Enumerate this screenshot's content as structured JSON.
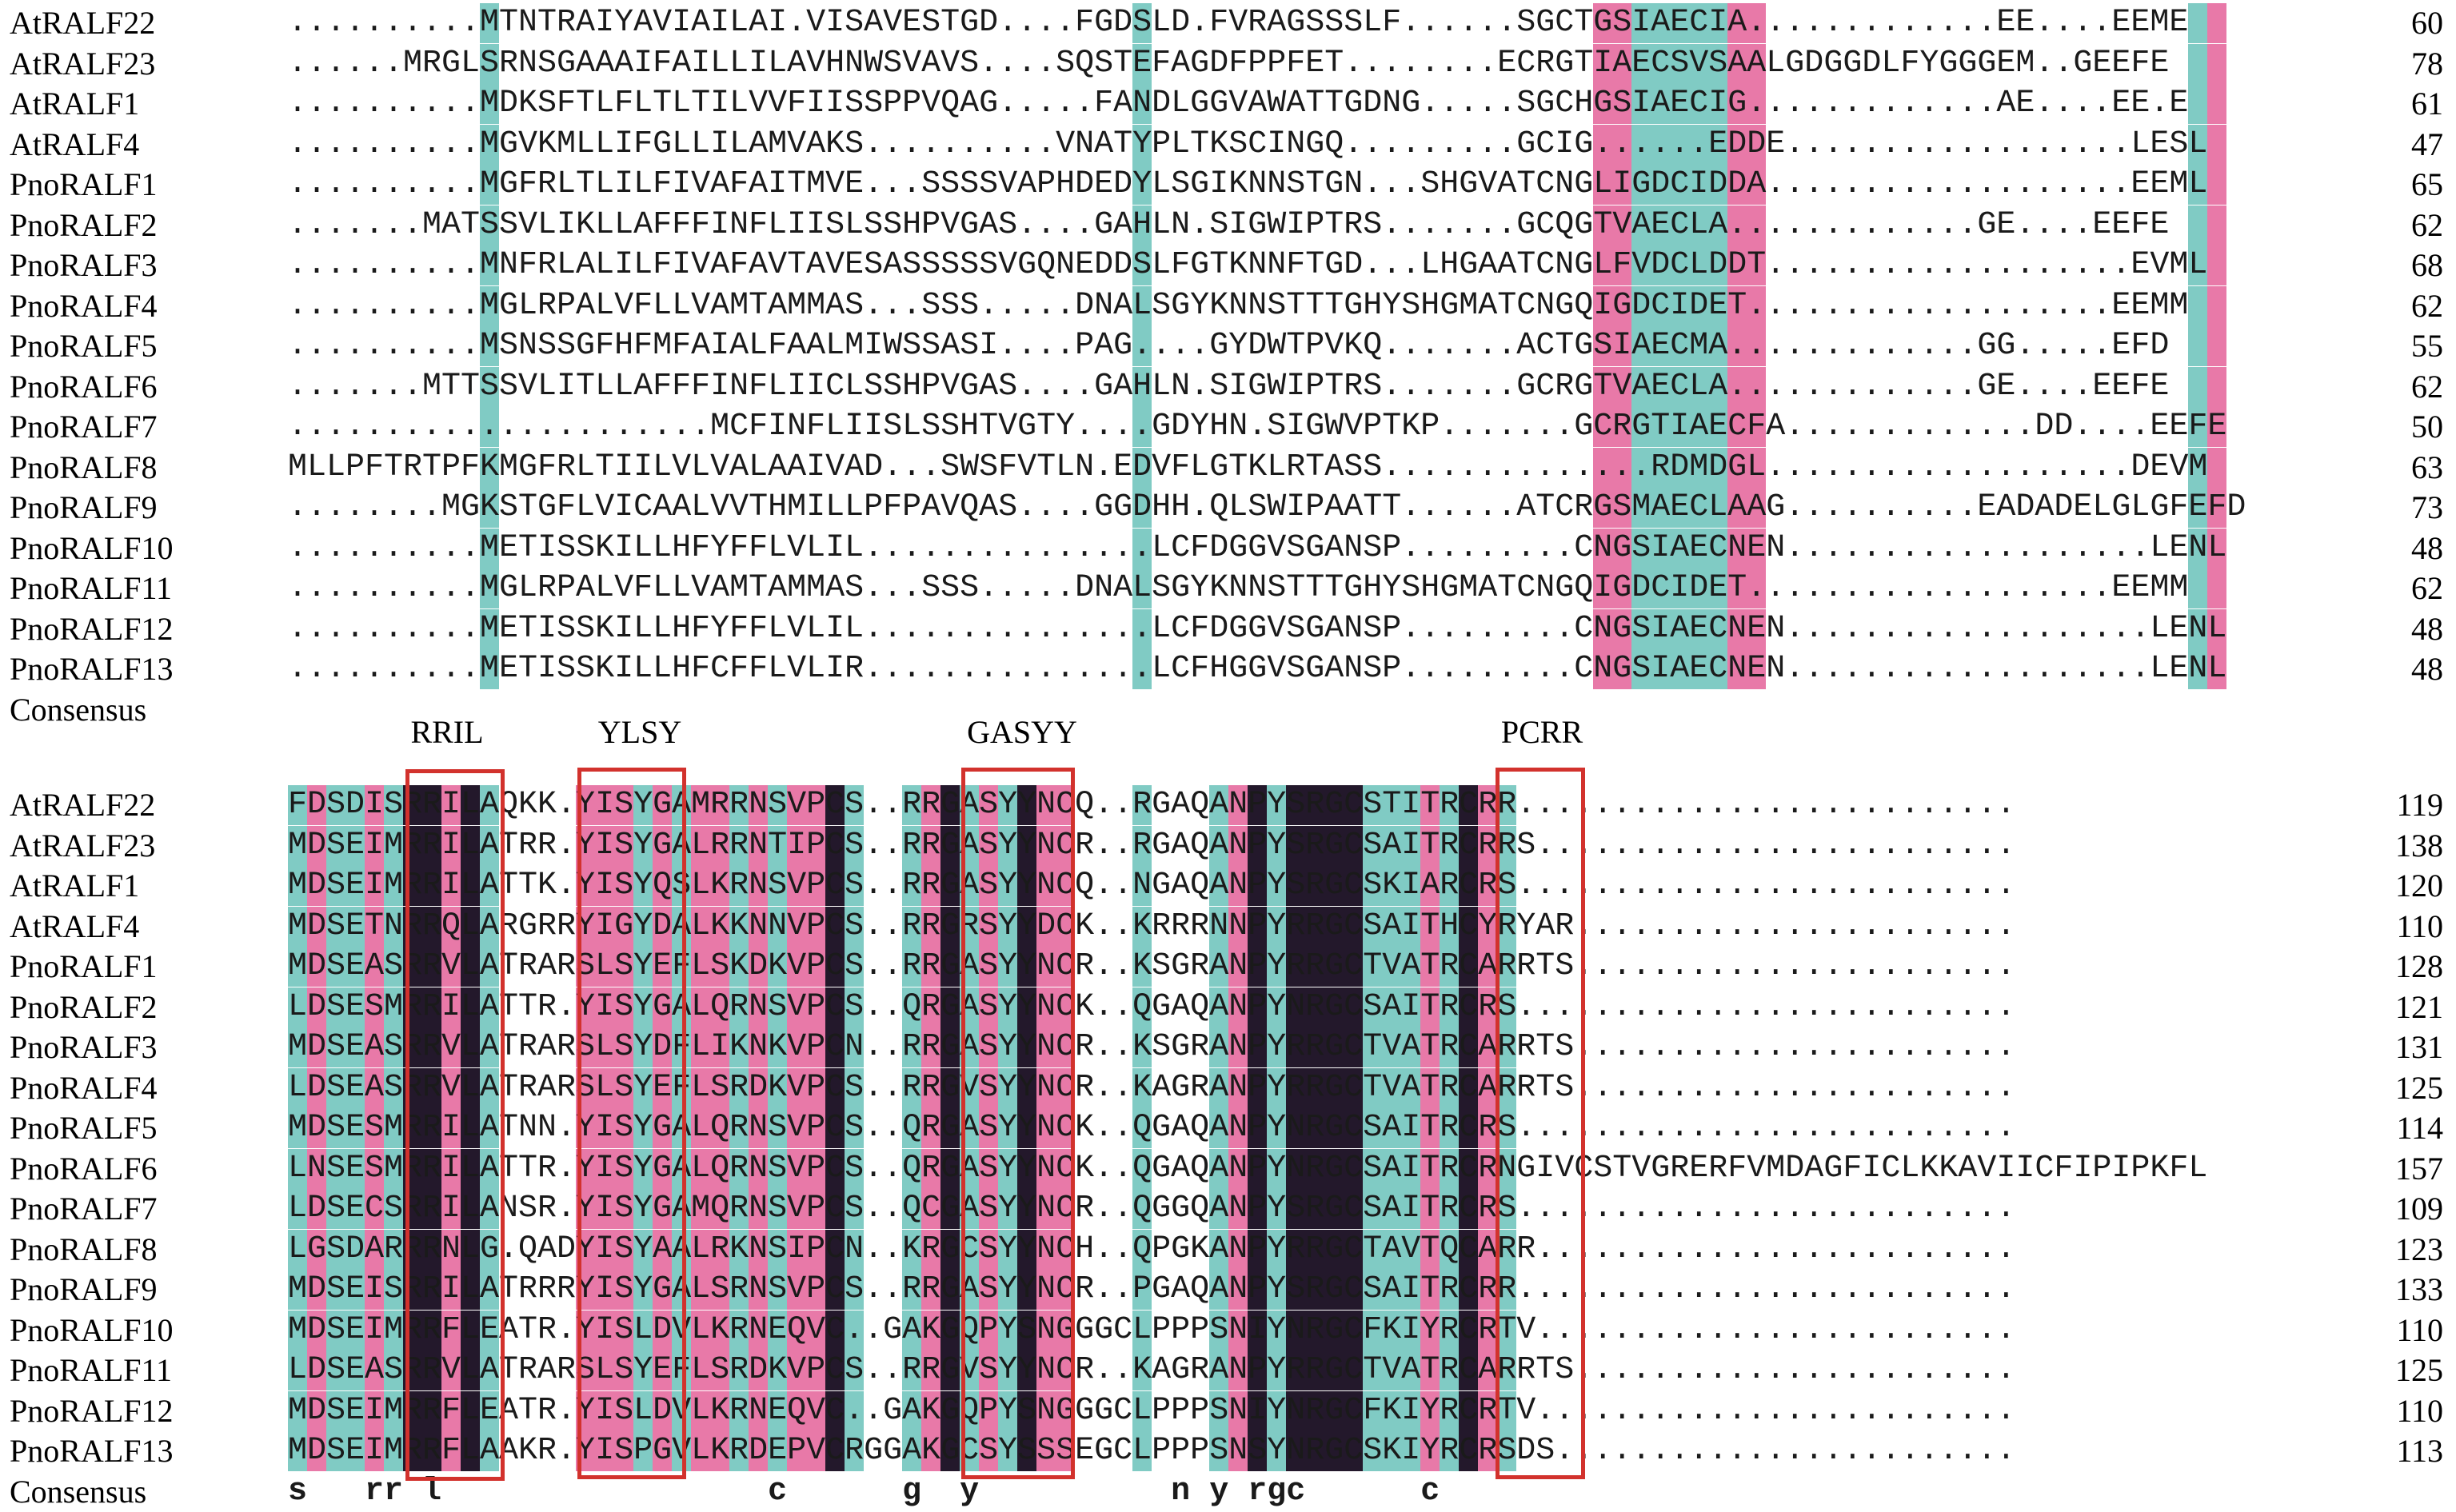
{
  "colors": {
    "black_identity": "#23182b",
    "pink_similar": "#e879a8",
    "teal_similar": "#80cbc4",
    "motif_box": "#d2322d"
  },
  "block1": {
    "rows": [
      {
        "name": "AtRALF22",
        "seq": "..........MTNTRAIYAVIAILAI.VISAVESTGD....FGDSLD.FVRAGSSSLF......SGCTGSIAECIA.............EE....EEME",
        "num": "60"
      },
      {
        "name": "AtRALF23",
        "seq": "......MRGLSRNSGAAAIFAILLILAVHNWSVAVS....SQSTEFAGDFPPFET........ECRGTIAECSVSAALGDGGDLFYGGGEM..GEEFE",
        "num": "78"
      },
      {
        "name": "AtRALF1",
        "seq": "..........MDKSFTLFLTLTILVVFIISSPPVQAG.....FANDLGGVAWATTGDNG.....SGCHGSIAECIG.............AE....EE.E",
        "num": "61"
      },
      {
        "name": "AtRALF4",
        "seq": "..........MGVKMLLIFGLLILAMVAKS..........VNATYPLTKSCINGQ.........GCIG......EDDE..................LESL",
        "num": "47"
      },
      {
        "name": "PnoRALF1",
        "seq": "..........MGFRLTLILFIVAFAITMVE...SSSSVAPHDEDYLSGIKNNSTGN...SHGVATCNGLIGDCIDDA...................EEML",
        "num": "65"
      },
      {
        "name": "PnoRALF2",
        "seq": ".......MATSSVLIKLLAFFFINFLIISLSSHPVGAS....GAHLN.SIGWIPTRS.......GCQGTVAECLA.............GE....EEFE",
        "num": "62"
      },
      {
        "name": "PnoRALF3",
        "seq": "..........MNFRLALILFIVAFAVTAVESASSSSSVGQNEDDSLFGTKNNFTGD...LHGAATCNGLFVDCLDDT...................EVML",
        "num": "68"
      },
      {
        "name": "PnoRALF4",
        "seq": "..........MGLRPALVFLLVAMTAMMAS...SSS.....DNALSGYKNNSTTTGHYSHGMATCNGQIGDCIDET...................EEMM",
        "num": "62"
      },
      {
        "name": "PnoRALF5",
        "seq": "..........MSNSSGFHFMFAIALFAALMIWSSASI....PAG....GYDWTPVKQ.......ACTGSIAECMA.............GG.....EFD",
        "num": "55"
      },
      {
        "name": "PnoRALF6",
        "seq": ".......MTTSSVLITLLAFFFINFLIICLSSHPVGAS....GAHLN.SIGWIPTRS.......GCRGTVAECLA.............GE....EEFE",
        "num": "62"
      },
      {
        "name": "PnoRALF7",
        "seq": "......................MCFINFLIISLSSHTVGTY....GDYHN.SIGWVPTKP.......GCRGTIAECFA.............DD....EEFE",
        "num": "50"
      },
      {
        "name": "PnoRALF8",
        "seq": "MLLPFTRTPFKMGFRLTIILVLVALAAIVAD...SWSFVTLN.EDVFLGTKLRTASS..............RDMDGL...................DEVM",
        "num": "63"
      },
      {
        "name": "PnoRALF9",
        "seq": "........MGKSTGFLVICAALVVTHMILLPFPAVQAS....GGDHH.QLSWIPAATT......ATCRGSMAECLAAG..........EADADELGLGFEFD",
        "num": "73"
      },
      {
        "name": "PnoRALF10",
        "seq": "..........METISSKILLHFYFFLVLIL...............LCFDGGVSGANSP.........CNGSIAECNEN...................LENL",
        "num": "48"
      },
      {
        "name": "PnoRALF11",
        "seq": "..........MGLRPALVFLLVAMTAMMAS...SSS.....DNALSGYKNNSTTTGHYSHGMATCNGQIGDCIDET...................EEMM",
        "num": "62"
      },
      {
        "name": "PnoRALF12",
        "seq": "..........METISSKILLHFYFFLVLIL...............LCFDGGVSGANSP.........CNGSIAECNEN...................LENL",
        "num": "48"
      },
      {
        "name": "PnoRALF13",
        "seq": "..........METISSKILLHFCFFLVLIR...............LCFHGGVSGANSP.........CNGSIAECNEN...................LENL",
        "num": "48"
      }
    ],
    "consensus_label": "Consensus",
    "consensus_seq": ""
  },
  "motifs": [
    {
      "label": "RRIL"
    },
    {
      "label": "YLSY"
    },
    {
      "label": "GASYY"
    },
    {
      "label": "PCRR"
    }
  ],
  "block2": {
    "rows": [
      {
        "name": "AtRALF22",
        "seq": "FDSDISRRILAQKK.YISYGAMRRNSVPCS..RRGASYYNCQ..RGAQANPYSRGCSTITRCRR..........................",
        "num": "119"
      },
      {
        "name": "AtRALF23",
        "seq": "MDSEIMRRILATRR.YISYGALRRNTIPCS..RRGASYYNCR..RGAQANPYSRGCSAITRCRRS.........................",
        "num": "138"
      },
      {
        "name": "AtRALF1",
        "seq": "MDSEIMRRILATTK.YISYQSLKRNSVPCS..RRGASYYNCQ..NGAQANPYSRGCSKIARCRS..........................",
        "num": "120"
      },
      {
        "name": "AtRALF4",
        "seq": "MDSETNRRQLARGRRYIGYDALKKNNVPCS..RRGRSYYDCK..KRRRNNPYRRGCSAITHCYRYAR.......................",
        "num": "110"
      },
      {
        "name": "PnoRALF1",
        "seq": "MDSEASRRVLATRARSLSYEFLSKDKVPCS..RRGASYYNCR..KSGRANPYRRGCTVATRCARRTS.......................",
        "num": "128"
      },
      {
        "name": "PnoRALF2",
        "seq": "LDSESMRRILATTR.YISYGALQRNSVPCS..QRGASYYNCK..QGAQANPYNRGCSAITRCRS..........................",
        "num": "121"
      },
      {
        "name": "PnoRALF3",
        "seq": "MDSEASRRVLATRARSLSYDFLIKNKVPCN..RRGASYYNCR..KSGRANPYRRGCTVATRCARRTS.......................",
        "num": "131"
      },
      {
        "name": "PnoRALF4",
        "seq": "LDSEASRRVLATRARSLSYEFLSRDKVPCS..RRGVSYYNCR..KAGRANPYRRGCTVATRCARRTS.......................",
        "num": "125"
      },
      {
        "name": "PnoRALF5",
        "seq": "MDSESMRRILATNN.YISYGALQRNSVPCS..QRGASYYNCK..QGAQANPYNRGCSAITRCRS..........................",
        "num": "114"
      },
      {
        "name": "PnoRALF6",
        "seq": "LNSESMRRILATTR.YISYGALQRNSVPCS..QRGASYYNCK..QGAQANPYNRGCSAITRCRNGIVCSTVGRERFVMDAGFICLKKAVIICFIPIPKFL",
        "num": "157"
      },
      {
        "name": "PnoRALF7",
        "seq": "LDSECSRRILANSR.YISYGAMQRNSVPCS..QCGASYYNCR..QGGQANPYSRGCSAITRCRS..........................",
        "num": "109"
      },
      {
        "name": "PnoRALF8",
        "seq": "LGSDARRRNLG.QADYISYAALRKNSIPCN..KRGCSYYNCH..QPGKANPYRRGCTAVTQCARR.........................",
        "num": "123"
      },
      {
        "name": "PnoRALF9",
        "seq": "MDSEISRRILATRRRYISYGALSRNSVPCS..RRGASYYNCR..PGAQANPYSRGCSAITRCRR..........................",
        "num": "133"
      },
      {
        "name": "PnoRALF10",
        "seq": "MDSEIMRRFLEATR.YISLDVLKRNEQVC..GAKGQPYSNGGGCLPPPSNIYNRGCFKIYRCRTV.........................",
        "num": "110"
      },
      {
        "name": "PnoRALF11",
        "seq": "LDSEASRRVLATRARSLSYEFLSRDKVPCS..RRGVSYYNCR..KAGRANPYRRGCTVATRCARRTS.......................",
        "num": "125"
      },
      {
        "name": "PnoRALF12",
        "seq": "MDSEIMRRFLEATR.YISLDVLKRNEQVC..GAKGQPYSNGGGCLPPPSNIYNRGCFKIYRCRTV.........................",
        "num": "110"
      },
      {
        "name": "PnoRALF13",
        "seq": "MDSEIMRRFLAAKR.YISPGVLKRDEPVCRGGAKGCSYSSSEGCLPPPSNSYNRGCSKIYRCRSDS........................",
        "num": "113"
      }
    ],
    "consensus_label": "Consensus",
    "consensus_seq": "s   rr l                 c      g  y          n y rgc      c"
  }
}
